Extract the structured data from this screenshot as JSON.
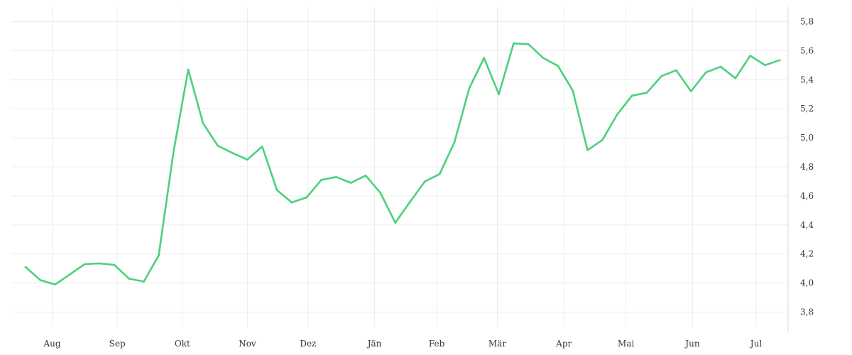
{
  "chart_data": {
    "type": "line",
    "title": "",
    "xlabel": "",
    "ylabel": "",
    "ylim": [
      3.7,
      5.9
    ],
    "y_ticks": [
      "3,8",
      "4,0",
      "4,2",
      "4,4",
      "4,6",
      "4,8",
      "5,0",
      "5,2",
      "5,4",
      "5,6",
      "5,8"
    ],
    "y_tick_values": [
      3.8,
      4.0,
      4.2,
      4.4,
      4.6,
      4.8,
      5.0,
      5.2,
      5.4,
      5.6,
      5.8
    ],
    "x_ticks": [
      "Aug",
      "Sep",
      "Okt",
      "Nov",
      "Dez",
      "Jän",
      "Feb",
      "Mär",
      "Apr",
      "Mai",
      "Jun",
      "Jul"
    ],
    "x_range": [
      0,
      52.5
    ],
    "x_tick_values": [
      1.8,
      6.2,
      10.6,
      15.0,
      19.1,
      23.6,
      27.8,
      31.9,
      36.4,
      40.6,
      45.1,
      49.4
    ],
    "grid": true,
    "y_axis_position": "right",
    "series": [
      {
        "color": "#4cd07d",
        "x": [
          0,
          1,
          2,
          3,
          4,
          5,
          6,
          7,
          8,
          9,
          10,
          11,
          12,
          13,
          14,
          15,
          16,
          17,
          18,
          19,
          20,
          21,
          22,
          23,
          24,
          25,
          26,
          27,
          28,
          29,
          30,
          31,
          32,
          33,
          34,
          35,
          36,
          37,
          38,
          39,
          40,
          41,
          42,
          43,
          44,
          45,
          46,
          47,
          48,
          49,
          50,
          51
        ],
        "values": [
          4.11,
          4.02,
          3.99,
          4.06,
          4.13,
          4.135,
          4.125,
          4.03,
          4.01,
          4.19,
          4.9,
          5.47,
          5.1,
          4.945,
          4.895,
          4.85,
          4.94,
          4.64,
          4.555,
          4.59,
          4.71,
          4.73,
          4.69,
          4.74,
          4.62,
          4.415,
          4.56,
          4.7,
          4.75,
          4.97,
          5.34,
          5.55,
          5.3,
          5.65,
          5.645,
          5.55,
          5.495,
          5.325,
          4.915,
          4.985,
          5.16,
          5.29,
          5.31,
          5.425,
          5.465,
          5.32,
          5.45,
          5.49,
          5.41,
          5.565,
          5.5,
          5.535
        ]
      }
    ]
  }
}
